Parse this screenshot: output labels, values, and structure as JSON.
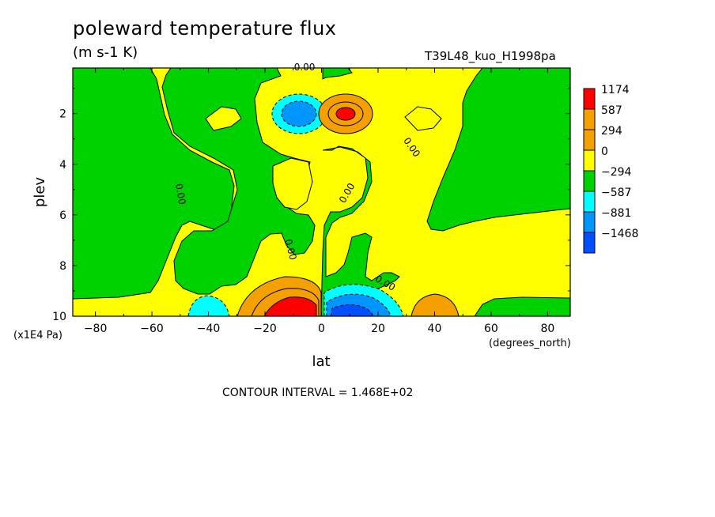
{
  "header": {
    "title": "poleward temperature flux",
    "units": "(m s-1 K)",
    "run_id": "T39L48_kuo_H1998pa"
  },
  "footer": {
    "contour_interval": "CONTOUR INTERVAL = 1.468E+02"
  },
  "colors": {
    "red": "#ff0000",
    "orange": "#f4a000",
    "yellow": "#ffff00",
    "green": "#00d200",
    "cyan": "#00ffff",
    "mid_blue": "#0096ff",
    "blue": "#0050ff"
  },
  "chart_data": {
    "type": "contour",
    "xlabel": "lat",
    "xunit": "(degrees_north)",
    "ylabel": "plev",
    "yunit": "(x1E4 Pa)",
    "xlim": [
      -88,
      88
    ],
    "ylim": [
      10,
      0.2
    ],
    "xticks": [
      -80,
      -60,
      -40,
      -20,
      0,
      20,
      40,
      60,
      80
    ],
    "xtick_labels": [
      "−80",
      "−60",
      "−40",
      "−20",
      "0",
      "20",
      "40",
      "60",
      "80"
    ],
    "yticks": [
      2,
      4,
      6,
      8,
      10
    ],
    "ytick_labels": [
      "2",
      "4",
      "6",
      "8",
      "10"
    ],
    "legend": [
      {
        "label": "1174",
        "color": "#ff0000"
      },
      {
        "label": "587",
        "color": "#f4a000"
      },
      {
        "label": "294",
        "color": "#f4a000"
      },
      {
        "label": "0",
        "color": "#ffff00"
      },
      {
        "label": "−294",
        "color": "#00d200"
      },
      {
        "label": "−587",
        "color": "#00ffff"
      },
      {
        "label": "−881",
        "color": "#0096ff"
      },
      {
        "label": "−1468",
        "color": "#0050ff"
      }
    ],
    "contour_labels": [
      {
        "text": "0.00",
        "lat": -51,
        "plev": 5.2,
        "rot": 80
      },
      {
        "text": "0.00",
        "lat": -12,
        "plev": 7.4,
        "rot": 75
      },
      {
        "text": "0.00",
        "lat": -6,
        "plev": 0.3,
        "rot": 0
      },
      {
        "text": "0.00",
        "lat": 10,
        "plev": 5.2,
        "rot": -60
      },
      {
        "text": "0.00",
        "lat": 31,
        "plev": 3.4,
        "rot": 55
      },
      {
        "text": "0.00",
        "lat": 22,
        "plev": 8.8,
        "rot": 30
      }
    ],
    "features": [
      {
        "lat": 8,
        "plev": 2.0,
        "sign": "positive",
        "peak_level": "1174"
      },
      {
        "lat": -8,
        "plev": 2.0,
        "sign": "negative",
        "peak_level": "−881"
      },
      {
        "lat": -8,
        "plev": 9.8,
        "sign": "positive",
        "peak_level": "1174"
      },
      {
        "lat": 10,
        "plev": 9.8,
        "sign": "negative",
        "peak_level": "−1468"
      },
      {
        "lat": 40,
        "plev": 9.6,
        "sign": "positive",
        "peak_level": "587"
      },
      {
        "lat": -42,
        "plev": 9.6,
        "sign": "negative",
        "peak_level": "−587"
      }
    ]
  }
}
